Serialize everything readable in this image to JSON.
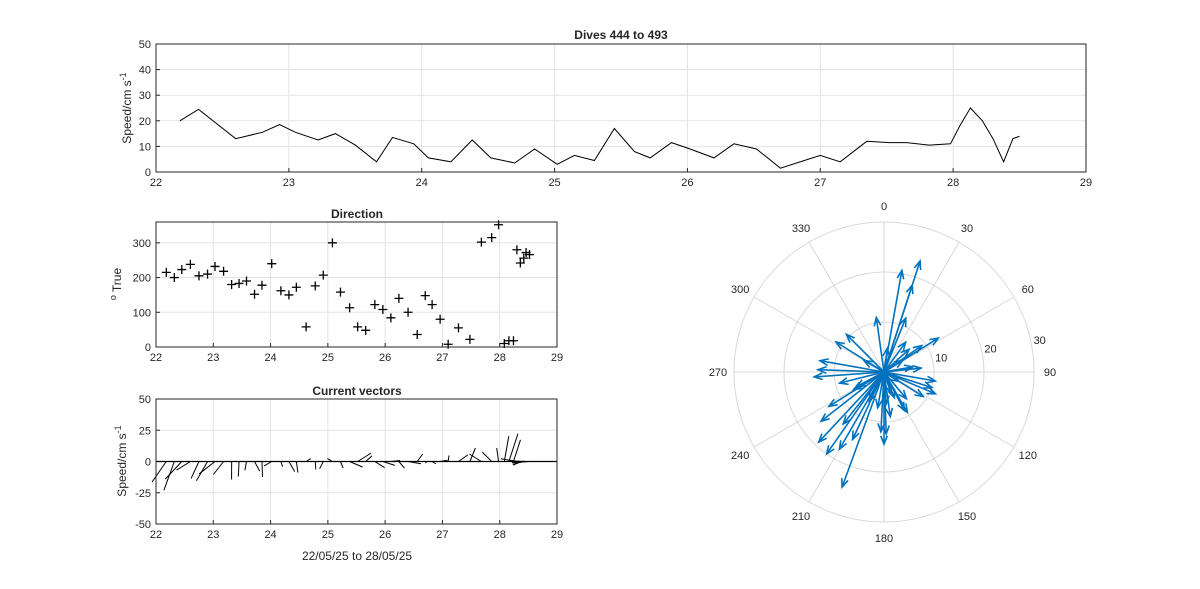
{
  "chart_data": [
    {
      "type": "line",
      "title": "Dives 444 to 493",
      "xlabel": "",
      "ylabel": "Speed/cm s",
      "ylabel_exponent": "-1",
      "xlim": [
        22,
        29
      ],
      "ylim": [
        0,
        50
      ],
      "xticks": [
        "22",
        "23",
        "24",
        "25",
        "26",
        "27",
        "28",
        "29"
      ],
      "yticks": [
        "0",
        "10",
        "20",
        "30",
        "40",
        "50"
      ],
      "grid": true,
      "color": "#000000",
      "series": [
        {
          "x": [
            22.18,
            22.32,
            22.6,
            22.8,
            22.93,
            23.05,
            23.22,
            23.35,
            23.5,
            23.66,
            23.78,
            23.94,
            24.05,
            24.22,
            24.38,
            24.52,
            24.7,
            24.85,
            25.02,
            25.15,
            25.3,
            25.45,
            25.6,
            25.72,
            25.88,
            26.02,
            26.2,
            26.35,
            26.52,
            26.7,
            26.88,
            27.0,
            27.15,
            27.35,
            27.52,
            27.65,
            27.82,
            27.98,
            28.05,
            28.13,
            28.22,
            28.3,
            28.38,
            28.45,
            28.5
          ],
          "y": [
            20,
            24.5,
            13,
            15.5,
            18.5,
            15.5,
            12.5,
            15,
            10.5,
            4,
            13.5,
            11,
            5.5,
            4,
            12.5,
            5.5,
            3.5,
            9,
            3,
            6.5,
            4.5,
            17,
            8,
            5.5,
            11.5,
            9,
            5.5,
            11,
            9,
            1.5,
            4.5,
            6.5,
            4,
            12,
            11.5,
            11.5,
            10.5,
            11,
            18,
            25,
            20,
            13,
            4,
            13,
            14
          ]
        }
      ]
    },
    {
      "type": "scatter",
      "title": "Direction",
      "xlabel": "",
      "ylabel": "True",
      "ylabel_prefix": "o",
      "xlim": [
        22,
        29
      ],
      "ylim": [
        0,
        360
      ],
      "xticks": [
        "22",
        "23",
        "24",
        "25",
        "26",
        "27",
        "28",
        "29"
      ],
      "yticks": [
        "0",
        "100",
        "200",
        "300"
      ],
      "grid": true,
      "marker": "+",
      "series": [
        {
          "x": [
            22.18,
            22.32,
            22.45,
            22.6,
            22.75,
            22.9,
            23.03,
            23.18,
            23.32,
            23.45,
            23.58,
            23.72,
            23.85,
            24.02,
            24.18,
            24.32,
            24.45,
            24.62,
            24.78,
            24.92,
            25.08,
            25.22,
            25.38,
            25.52,
            25.66,
            25.82,
            25.96,
            26.1,
            26.24,
            26.4,
            26.56,
            26.7,
            26.82,
            26.96,
            27.1,
            27.28,
            27.48,
            27.68,
            27.86,
            27.98,
            28.08,
            28.16,
            28.24,
            28.3,
            28.36,
            28.42,
            28.46,
            28.52
          ],
          "y": [
            215,
            200,
            223,
            238,
            205,
            210,
            232,
            218,
            180,
            183,
            190,
            152,
            178,
            240,
            162,
            150,
            172,
            58,
            176,
            207,
            300,
            158,
            113,
            58,
            48,
            122,
            108,
            84,
            140,
            100,
            36,
            148,
            122,
            80,
            8,
            55,
            22,
            302,
            315,
            352,
            10,
            18,
            18,
            280,
            242,
            256,
            272,
            266
          ]
        }
      ]
    },
    {
      "type": "vector",
      "title": "Current vectors",
      "xlabel": "22/05/25 to 28/05/25",
      "ylabel": "Speed/cm s",
      "ylabel_exponent": "-1",
      "xlim": [
        22,
        29
      ],
      "ylim": [
        -50,
        50
      ],
      "xticks": [
        "22",
        "23",
        "24",
        "25",
        "26",
        "27",
        "28",
        "29"
      ],
      "yticks": [
        "-50",
        "-25",
        "0",
        "25",
        "50"
      ],
      "grid": true,
      "note": "vectors derived from speed and direction series"
    },
    {
      "type": "polar",
      "title": "",
      "theta_zero": "top",
      "theta_direction": "clockwise",
      "theta_ticks": [
        "0",
        "30",
        "60",
        "90",
        "120",
        "150",
        "180",
        "210",
        "240",
        "270",
        "300",
        "330"
      ],
      "r_ticks": [
        "10",
        "20",
        "30"
      ],
      "rlim": [
        0,
        30
      ],
      "color": "#0072BD",
      "note": "compass arrows derived from speed and direction series"
    }
  ]
}
